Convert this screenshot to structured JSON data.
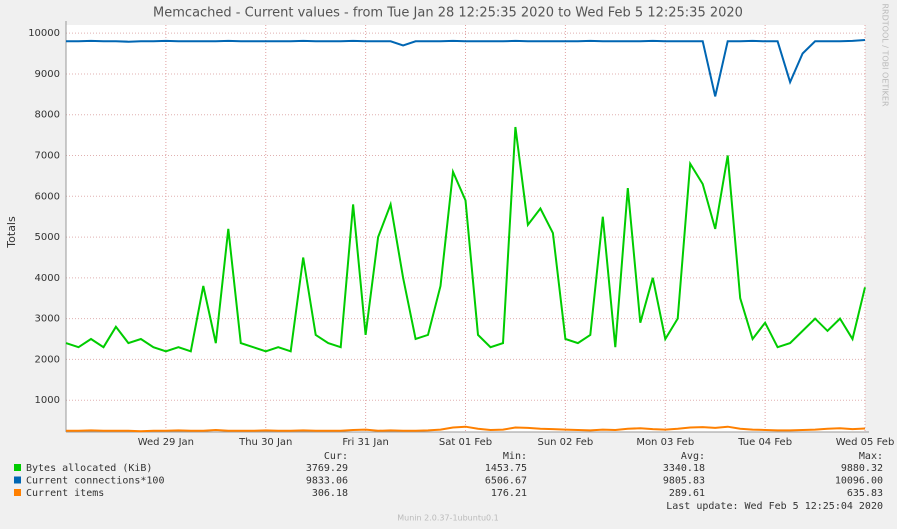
{
  "chart_data": {
    "type": "line",
    "title": "Memcached - Current values - from Tue Jan 28 12:25:35 2020 to Wed Feb  5 12:25:35 2020",
    "ylabel": "Totals",
    "watermark": "RRDTOOL / TOBI OETIKER",
    "categories": [
      null,
      null,
      null,
      null,
      null,
      null,
      null,
      null,
      "Wed 29 Jan",
      null,
      null,
      null,
      null,
      null,
      null,
      null,
      "Thu 30 Jan",
      null,
      null,
      null,
      null,
      null,
      null,
      null,
      "Fri 31 Jan",
      null,
      null,
      null,
      null,
      null,
      null,
      null,
      "Sat 01 Feb",
      null,
      null,
      null,
      null,
      null,
      null,
      null,
      "Sun 02 Feb",
      null,
      null,
      null,
      null,
      null,
      null,
      null,
      "Mon 03 Feb",
      null,
      null,
      null,
      null,
      null,
      null,
      null,
      "Tue 04 Feb",
      null,
      null,
      null,
      null,
      null,
      null,
      null,
      "Wed 05 Feb"
    ],
    "ylim": [
      220,
      10200
    ],
    "yticks": [
      1000,
      2000,
      3000,
      4000,
      5000,
      6000,
      7000,
      8000,
      9000,
      10000
    ],
    "grid": true,
    "stat_headers": [
      "Cur:",
      "Min:",
      "Avg:",
      "Max:"
    ],
    "series": [
      {
        "name": "Bytes allocated (KiB)",
        "color": "#00cc00",
        "values": [
          2400,
          2300,
          2500,
          2300,
          2800,
          2400,
          2500,
          2300,
          2200,
          2300,
          2200,
          3800,
          2400,
          5200,
          2400,
          2300,
          2200,
          2300,
          2200,
          4500,
          2600,
          2400,
          2300,
          5800,
          2600,
          5000,
          5800,
          4000,
          2500,
          2600,
          3800,
          6600,
          5900,
          2600,
          2300,
          2400,
          7700,
          5300,
          5700,
          5100,
          2500,
          2400,
          2600,
          5500,
          2300,
          6200,
          2900,
          4000,
          2500,
          3000,
          6800,
          6300,
          5200,
          7000,
          3500,
          2500,
          2900,
          2300,
          2400,
          2700,
          3000,
          2700,
          3000,
          2500,
          3769
        ],
        "stats": [
          "3769.29",
          "1453.75",
          "3340.18",
          "9880.32"
        ]
      },
      {
        "name": "Current connections*100",
        "color": "#0066b3",
        "values": [
          9800,
          9800,
          9810,
          9800,
          9800,
          9790,
          9800,
          9800,
          9810,
          9800,
          9800,
          9800,
          9800,
          9810,
          9800,
          9800,
          9800,
          9800,
          9800,
          9810,
          9800,
          9800,
          9800,
          9810,
          9800,
          9800,
          9800,
          9700,
          9800,
          9800,
          9800,
          9810,
          9800,
          9800,
          9800,
          9800,
          9810,
          9800,
          9800,
          9800,
          9800,
          9800,
          9810,
          9800,
          9800,
          9800,
          9800,
          9810,
          9800,
          9800,
          9800,
          9800,
          8450,
          9800,
          9800,
          9810,
          9800,
          9800,
          8800,
          9500,
          9800,
          9800,
          9800,
          9810,
          9833
        ],
        "stats": [
          "9833.06",
          "6506.67",
          "9805.83",
          "10096.00"
        ]
      },
      {
        "name": "Current items",
        "color": "#ff8000",
        "values": [
          250,
          250,
          260,
          250,
          250,
          250,
          240,
          250,
          250,
          260,
          250,
          250,
          270,
          250,
          250,
          250,
          260,
          250,
          250,
          260,
          250,
          250,
          250,
          270,
          280,
          250,
          260,
          250,
          250,
          260,
          280,
          330,
          350,
          300,
          270,
          280,
          330,
          320,
          300,
          290,
          280,
          270,
          260,
          280,
          270,
          300,
          310,
          290,
          280,
          300,
          330,
          340,
          320,
          350,
          300,
          280,
          270,
          260,
          260,
          270,
          280,
          300,
          310,
          290,
          306
        ],
        "stats": [
          "306.18",
          "176.21",
          "289.61",
          "635.83"
        ]
      }
    ],
    "last_update": "Last update: Wed Feb  5 12:25:04 2020",
    "footer": "Munin 2.0.37-1ubuntu0.1"
  }
}
